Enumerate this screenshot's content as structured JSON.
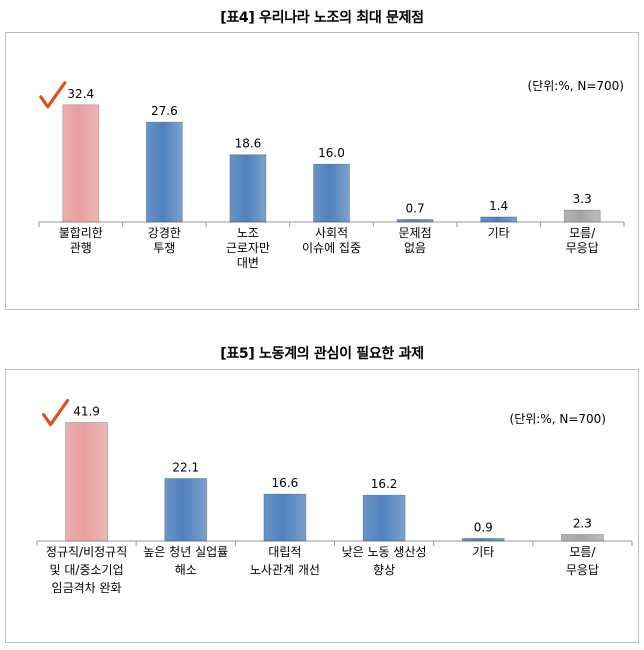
{
  "chart_data": [
    {
      "type": "bar",
      "title": "[표4] 우리나라 노조의 최대 문제점",
      "unit_note": "(단위:%, N=700)",
      "categories": [
        [
          "불합리한",
          "관행"
        ],
        [
          "강경한",
          "투쟁"
        ],
        [
          "노조",
          "근로자만",
          "대변"
        ],
        [
          "사회적",
          "이슈에 집중"
        ],
        [
          "문제점",
          "없음"
        ],
        [
          "기타"
        ],
        [
          "모름/",
          "무응답"
        ]
      ],
      "values": [
        32.4,
        27.6,
        18.6,
        16.0,
        0.7,
        1.4,
        3.3
      ],
      "value_labels": [
        "32.4",
        "27.6",
        "18.6",
        "16.0",
        "0.7",
        "1.4",
        "3.3"
      ],
      "bar_colors": [
        "#e8a0a0",
        "#4f81bd",
        "#4f81bd",
        "#4f81bd",
        "#4f81bd",
        "#4f81bd",
        "#a6a6a6"
      ],
      "highlight_index": 0,
      "ylim": [
        0,
        34
      ]
    },
    {
      "type": "bar",
      "title": "[표5] 노동계의 관심이 필요한 과제",
      "unit_note": "(단위:%, N=700)",
      "categories": [
        [
          "정규직/비정규직",
          "및 대/중소기업",
          "임금격차 완화"
        ],
        [
          "높은 청년 실업률",
          "해소"
        ],
        [
          "대립적",
          "노사관계 개선"
        ],
        [
          "낮은 노동 생산성",
          "향상"
        ],
        [
          "기타"
        ],
        [
          "모름/",
          "무응답"
        ]
      ],
      "values": [
        41.9,
        22.1,
        16.6,
        16.2,
        0.9,
        2.3
      ],
      "value_labels": [
        "41.9",
        "22.1",
        "16.6",
        "16.2",
        "0.9",
        "2.3"
      ],
      "bar_colors": [
        "#e8a0a0",
        "#4f81bd",
        "#4f81bd",
        "#4f81bd",
        "#4f81bd",
        "#a6a6a6"
      ],
      "highlight_index": 0,
      "ylim": [
        0,
        43.5
      ]
    }
  ],
  "colors": {
    "highlight_bar": "#e8a0a0",
    "bar": "#4f81bd",
    "no_answer_bar": "#a6a6a6",
    "checkmark": "#d9531e"
  },
  "icons": {
    "highlight_marker": "checkmark-icon"
  }
}
